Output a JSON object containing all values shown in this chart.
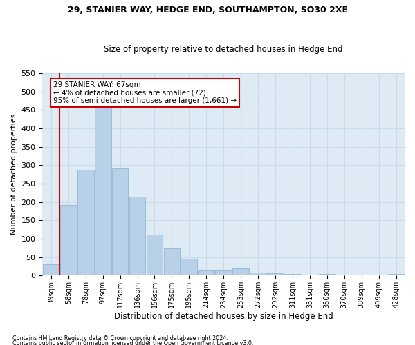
{
  "title_line1": "29, STANIER WAY, HEDGE END, SOUTHAMPTON, SO30 2XE",
  "title_line2": "Size of property relative to detached houses in Hedge End",
  "xlabel": "Distribution of detached houses by size in Hedge End",
  "ylabel": "Number of detached properties",
  "categories": [
    "39sqm",
    "58sqm",
    "78sqm",
    "97sqm",
    "117sqm",
    "136sqm",
    "156sqm",
    "175sqm",
    "195sqm",
    "214sqm",
    "234sqm",
    "253sqm",
    "272sqm",
    "292sqm",
    "311sqm",
    "331sqm",
    "350sqm",
    "370sqm",
    "389sqm",
    "409sqm",
    "428sqm"
  ],
  "values": [
    30,
    192,
    288,
    458,
    292,
    214,
    112,
    73,
    46,
    13,
    13,
    20,
    8,
    6,
    5,
    0,
    5,
    0,
    0,
    0,
    4
  ],
  "bar_color": "#b8d0e8",
  "bar_edge_color": "#8ab0cc",
  "annotation_line1": "29 STANIER WAY: 67sqm",
  "annotation_line2": "← 4% of detached houses are smaller (72)",
  "annotation_line3": "95% of semi-detached houses are larger (1,661) →",
  "vline_color": "#cc0000",
  "grid_color": "#c8dcea",
  "background_color": "#deeaf4",
  "ylim": [
    0,
    550
  ],
  "yticks": [
    0,
    50,
    100,
    150,
    200,
    250,
    300,
    350,
    400,
    450,
    500,
    550
  ],
  "footnote1": "Contains HM Land Registry data © Crown copyright and database right 2024.",
  "footnote2": "Contains public sector information licensed under the Open Government Licence v3.0."
}
